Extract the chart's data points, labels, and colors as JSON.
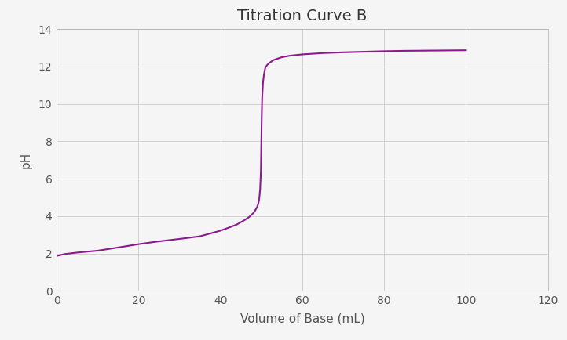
{
  "title": "Titration Curve B",
  "xlabel": "Volume of Base (mL)",
  "ylabel": "pH",
  "xlim": [
    0,
    120
  ],
  "ylim": [
    0,
    14
  ],
  "xticks": [
    0,
    20,
    40,
    60,
    80,
    100,
    120
  ],
  "yticks": [
    0,
    2,
    4,
    6,
    8,
    10,
    12,
    14
  ],
  "line_color": "#8B1A8B",
  "background_color": "#f5f5f5",
  "grid_color": "#d0d0d0",
  "title_fontsize": 14,
  "label_fontsize": 11,
  "tick_fontsize": 10,
  "curve_points": {
    "x": [
      0,
      2,
      5,
      10,
      15,
      20,
      25,
      30,
      35,
      40,
      42,
      44,
      46,
      47,
      48,
      48.5,
      49,
      49.3,
      49.5,
      49.7,
      49.9,
      50.0,
      50.1,
      50.2,
      50.4,
      50.6,
      50.8,
      51,
      51.5,
      52,
      53,
      55,
      57,
      60,
      65,
      70,
      75,
      80,
      85,
      90,
      95,
      100
    ],
    "y": [
      1.87,
      1.97,
      2.05,
      2.15,
      2.32,
      2.5,
      2.65,
      2.78,
      2.92,
      3.22,
      3.38,
      3.55,
      3.8,
      3.95,
      4.15,
      4.3,
      4.5,
      4.7,
      4.95,
      5.4,
      6.4,
      7.9,
      9.3,
      10.3,
      11.1,
      11.5,
      11.75,
      11.95,
      12.1,
      12.2,
      12.35,
      12.5,
      12.58,
      12.65,
      12.72,
      12.76,
      12.79,
      12.82,
      12.84,
      12.85,
      12.86,
      12.87
    ]
  }
}
